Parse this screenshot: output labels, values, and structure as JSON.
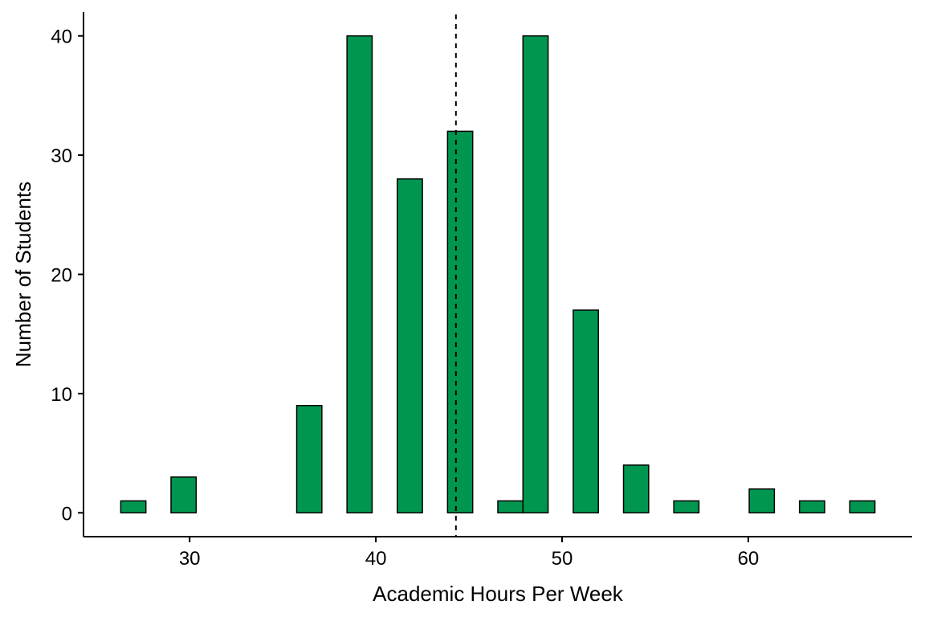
{
  "chart_data": {
    "type": "bar",
    "title": "",
    "xlabel": "Academic Hours Per Week",
    "ylabel": "Number of Students",
    "bin_width": 1.35,
    "bins": [
      {
        "x_start": 26.3,
        "x_end": 27.65,
        "count": 1
      },
      {
        "x_start": 29.0,
        "x_end": 30.35,
        "count": 3
      },
      {
        "x_start": 35.75,
        "x_end": 37.1,
        "count": 9
      },
      {
        "x_start": 38.45,
        "x_end": 39.8,
        "count": 40
      },
      {
        "x_start": 41.15,
        "x_end": 42.5,
        "count": 28
      },
      {
        "x_start": 43.85,
        "x_end": 45.2,
        "count": 32
      },
      {
        "x_start": 46.55,
        "x_end": 47.9,
        "count": 1
      },
      {
        "x_start": 47.9,
        "x_end": 49.25,
        "count": 40
      },
      {
        "x_start": 50.6,
        "x_end": 51.95,
        "count": 17
      },
      {
        "x_start": 53.3,
        "x_end": 54.65,
        "count": 4
      },
      {
        "x_start": 56.0,
        "x_end": 57.35,
        "count": 1
      },
      {
        "x_start": 60.05,
        "x_end": 61.4,
        "count": 2
      },
      {
        "x_start": 62.75,
        "x_end": 64.1,
        "count": 1
      },
      {
        "x_start": 65.45,
        "x_end": 66.8,
        "count": 1
      }
    ],
    "mean_line": {
      "x": 44.3,
      "style": "dashed"
    },
    "xlim": [
      24.3,
      68.8
    ],
    "ylim": [
      -2,
      42
    ],
    "x_ticks": [
      30,
      40,
      50,
      60
    ],
    "y_ticks": [
      0,
      10,
      20,
      30,
      40
    ],
    "grid": false,
    "legend": "none",
    "bar_fill": "#009650",
    "bar_stroke": "#000000"
  }
}
